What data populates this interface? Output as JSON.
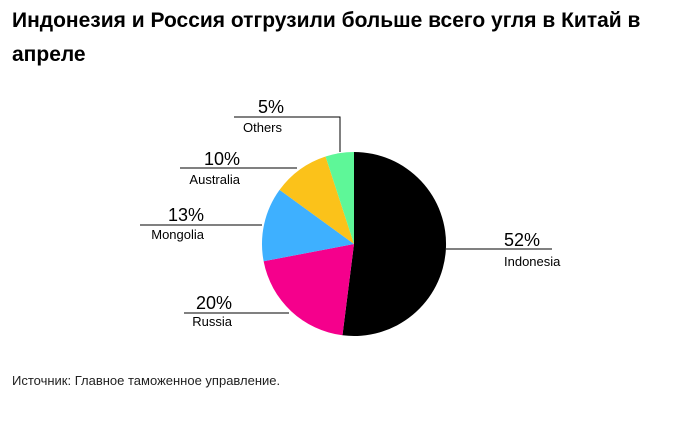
{
  "title": "Индонезия и Россия отгрузили больше всего угля в Китай в апреле",
  "source": "Источник: Главное таможенное управление.",
  "chart_data": {
    "type": "pie",
    "start": "12 o'clock",
    "direction": "clockwise",
    "slices": [
      {
        "name": "Indonesia",
        "value": 52,
        "label": "52%",
        "color": "#000000"
      },
      {
        "name": "Russia",
        "value": 20,
        "label": "20%",
        "color": "#f5008c"
      },
      {
        "name": "Mongolia",
        "value": 13,
        "label": "13%",
        "color": "#3eb0ff"
      },
      {
        "name": "Australia",
        "value": 10,
        "label": "10%",
        "color": "#fbc21a"
      },
      {
        "name": "Others",
        "value": 5,
        "label": "5%",
        "color": "#5ef798"
      }
    ]
  }
}
